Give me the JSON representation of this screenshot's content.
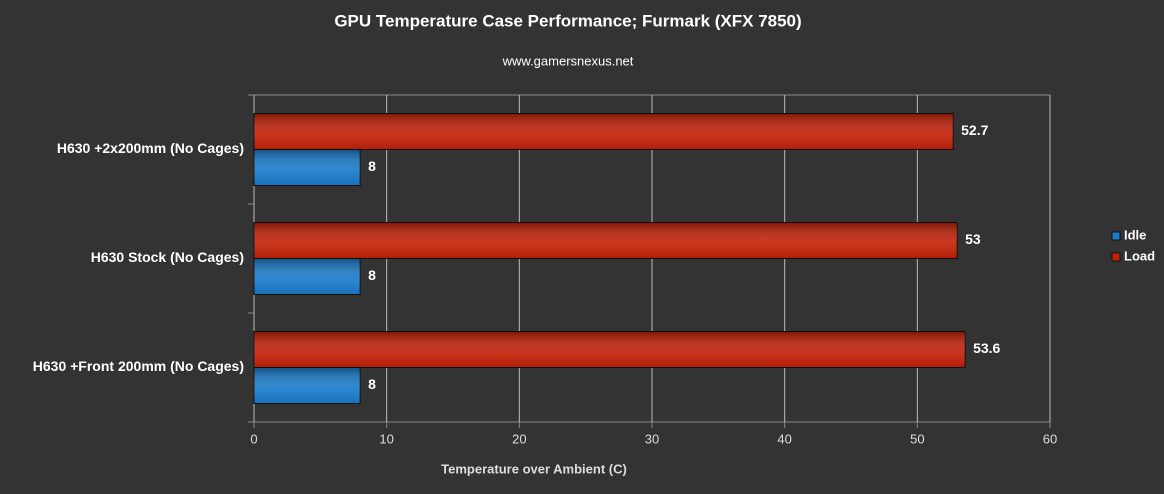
{
  "chart_data": {
    "type": "bar",
    "orientation": "horizontal",
    "title": "GPU Temperature Case Performance; Furmark (XFX 7850)",
    "subtitle": "www.gamersnexus.net",
    "x_label": "Temperature over Ambient (C)",
    "categories": [
      "H630 +2x200mm (No Cages)",
      "H630 Stock (No Cages)",
      "H630 +Front 200mm (No Cages)"
    ],
    "series": [
      {
        "name": "Idle",
        "color": "#1a7ccc",
        "values": [
          8,
          8,
          8
        ]
      },
      {
        "name": "Load",
        "color": "#c42208",
        "values": [
          52.7,
          53,
          53.6
        ]
      }
    ],
    "xlim": [
      0,
      60
    ],
    "xticks": [
      0,
      10,
      20,
      30,
      40,
      50,
      60
    ],
    "grid": true,
    "legend": "right"
  }
}
